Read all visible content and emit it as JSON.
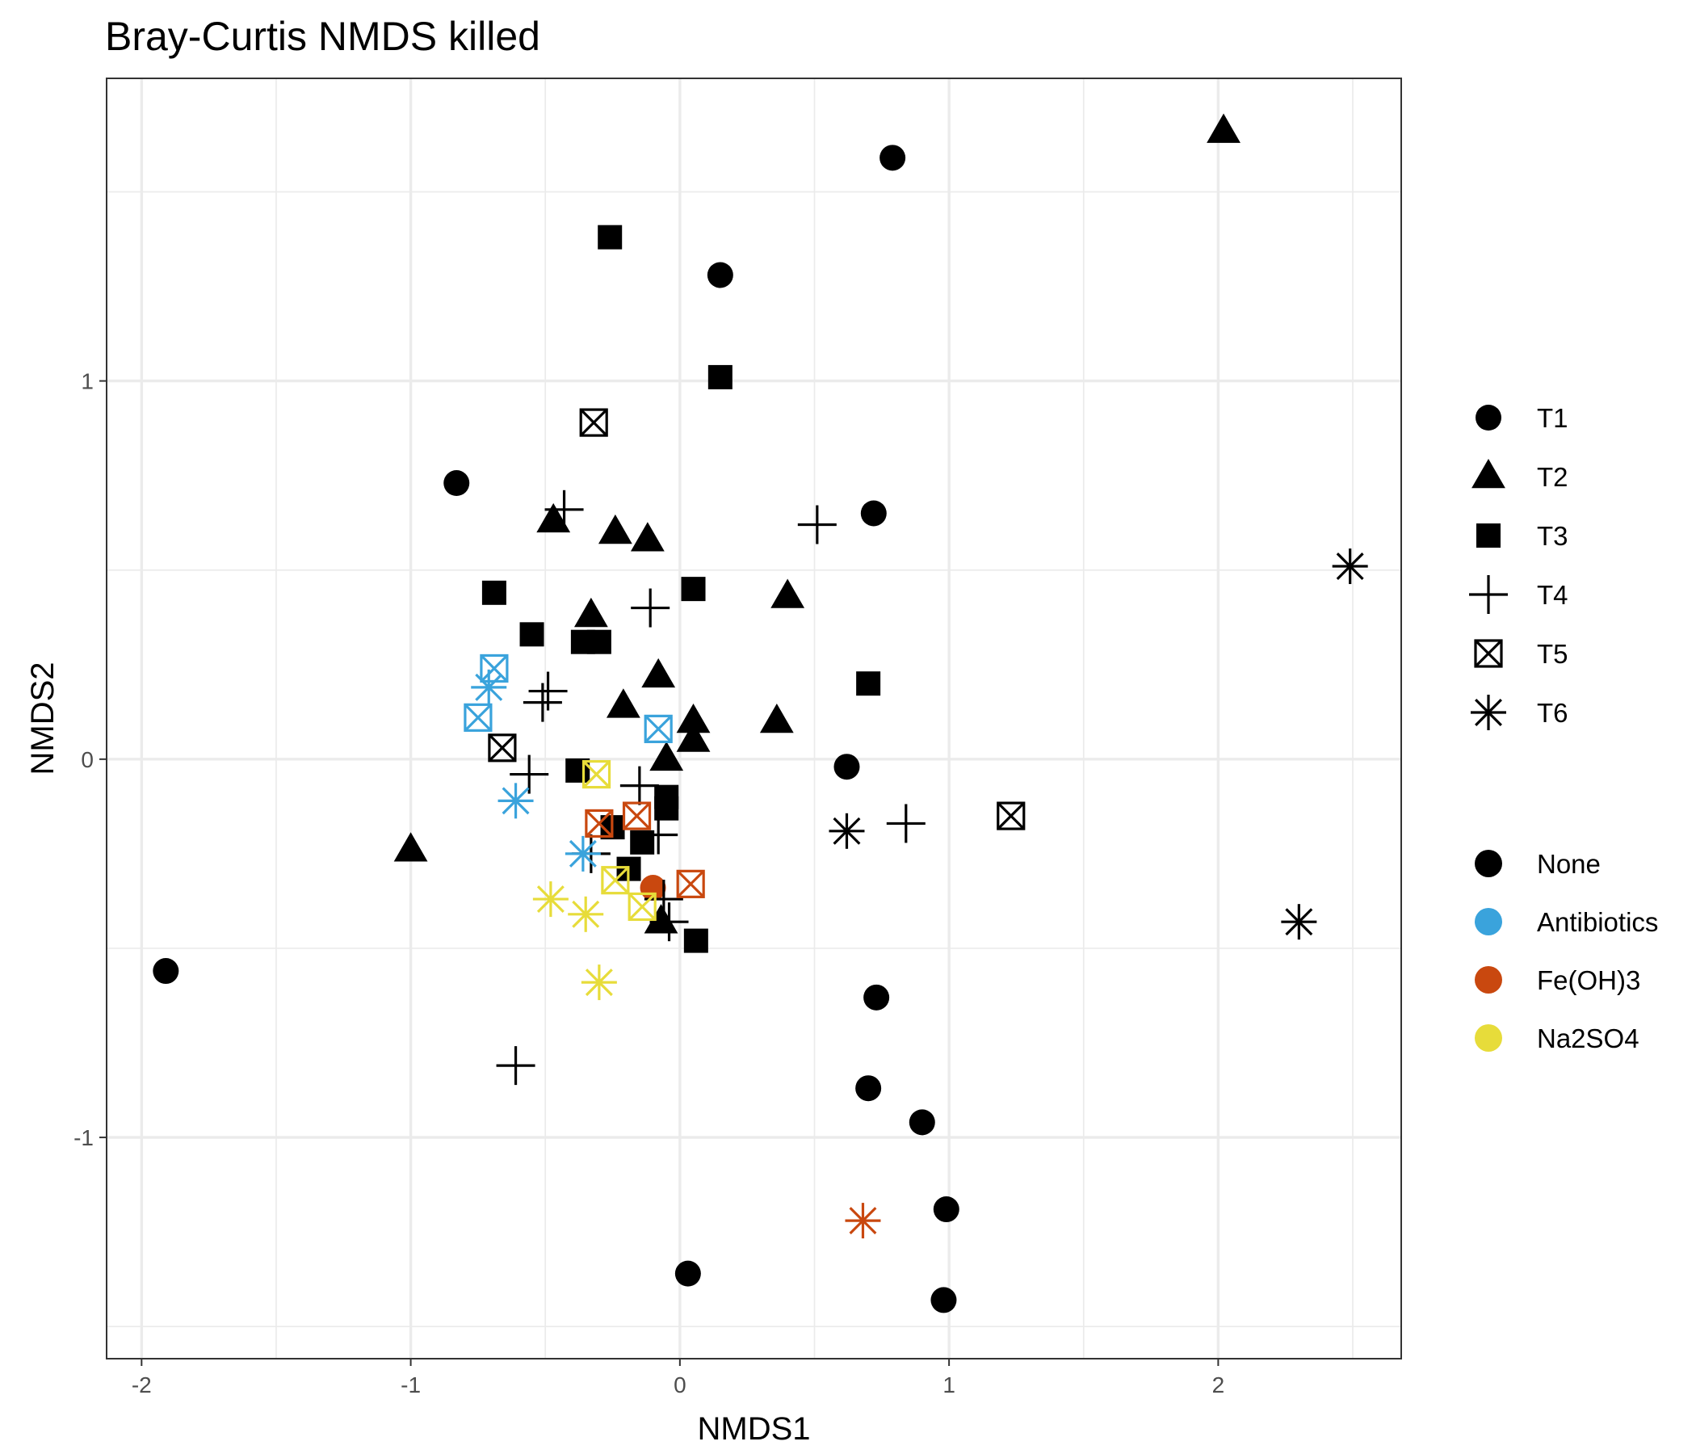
{
  "chart_data": {
    "type": "scatter",
    "title": "Bray-Curtis NMDS killed",
    "xlabel": "NMDS1",
    "ylabel": "NMDS2",
    "xlim": [
      -2.13,
      2.68
    ],
    "ylim": [
      -1.585,
      1.8
    ],
    "x_ticks": [
      -2,
      -1,
      0,
      1,
      2
    ],
    "x_tick_labels": [
      "-2",
      "-1",
      "0",
      "1",
      "2"
    ],
    "y_ticks": [
      -1,
      0,
      1
    ],
    "y_tick_labels": [
      "-1",
      "0",
      "1"
    ],
    "grid": true,
    "legend_position": "right",
    "shape_legend": [
      {
        "key": "T1",
        "label": "T1",
        "shape": "circle"
      },
      {
        "key": "T2",
        "label": "T2",
        "shape": "triangle"
      },
      {
        "key": "T3",
        "label": "T3",
        "shape": "square"
      },
      {
        "key": "T4",
        "label": "T4",
        "shape": "plus"
      },
      {
        "key": "T5",
        "label": "T5",
        "shape": "boxcross"
      },
      {
        "key": "T6",
        "label": "T6",
        "shape": "asterisk"
      }
    ],
    "color_legend": [
      {
        "key": "None",
        "label": "None",
        "color": "#000000"
      },
      {
        "key": "Antibiotics",
        "label": "Antibiotics",
        "color": "#3aa3dc"
      },
      {
        "key": "Fe(OH)3",
        "label": "Fe(OH)3",
        "color": "#c9480f"
      },
      {
        "key": "Na2SO4",
        "label": "Na2SO4",
        "color": "#e7dc3a"
      }
    ],
    "points": [
      {
        "x": 0.79,
        "y": 1.59,
        "time": "T1",
        "treatment": "None"
      },
      {
        "x": 0.15,
        "y": 1.28,
        "time": "T1",
        "treatment": "None"
      },
      {
        "x": -0.83,
        "y": 0.73,
        "time": "T1",
        "treatment": "None"
      },
      {
        "x": 0.72,
        "y": 0.65,
        "time": "T1",
        "treatment": "None"
      },
      {
        "x": 0.62,
        "y": -0.02,
        "time": "T1",
        "treatment": "None"
      },
      {
        "x": -1.91,
        "y": -0.56,
        "time": "T1",
        "treatment": "None"
      },
      {
        "x": 0.73,
        "y": -0.63,
        "time": "T1",
        "treatment": "None"
      },
      {
        "x": 0.7,
        "y": -0.87,
        "time": "T1",
        "treatment": "None"
      },
      {
        "x": 0.9,
        "y": -0.96,
        "time": "T1",
        "treatment": "None"
      },
      {
        "x": 0.99,
        "y": -1.19,
        "time": "T1",
        "treatment": "None"
      },
      {
        "x": 0.03,
        "y": -1.36,
        "time": "T1",
        "treatment": "None"
      },
      {
        "x": 0.98,
        "y": -1.43,
        "time": "T1",
        "treatment": "None"
      },
      {
        "x": -0.1,
        "y": -0.34,
        "time": "T1",
        "treatment": "Fe(OH)3"
      },
      {
        "x": 2.02,
        "y": 1.66,
        "time": "T2",
        "treatment": "None"
      },
      {
        "x": -0.47,
        "y": 0.63,
        "time": "T2",
        "treatment": "None"
      },
      {
        "x": -0.24,
        "y": 0.6,
        "time": "T2",
        "treatment": "None"
      },
      {
        "x": -0.12,
        "y": 0.58,
        "time": "T2",
        "treatment": "None"
      },
      {
        "x": 0.4,
        "y": 0.43,
        "time": "T2",
        "treatment": "None"
      },
      {
        "x": -0.33,
        "y": 0.38,
        "time": "T2",
        "treatment": "None"
      },
      {
        "x": -0.08,
        "y": 0.22,
        "time": "T2",
        "treatment": "None"
      },
      {
        "x": -0.21,
        "y": 0.14,
        "time": "T2",
        "treatment": "None"
      },
      {
        "x": 0.05,
        "y": 0.1,
        "time": "T2",
        "treatment": "None"
      },
      {
        "x": 0.36,
        "y": 0.1,
        "time": "T2",
        "treatment": "None"
      },
      {
        "x": 0.05,
        "y": 0.05,
        "time": "T2",
        "treatment": "None"
      },
      {
        "x": -0.05,
        "y": 0.0,
        "time": "T2",
        "treatment": "None"
      },
      {
        "x": -1.0,
        "y": -0.24,
        "time": "T2",
        "treatment": "None"
      },
      {
        "x": -0.07,
        "y": -0.43,
        "time": "T2",
        "treatment": "None"
      },
      {
        "x": -0.26,
        "y": 1.38,
        "time": "T3",
        "treatment": "None"
      },
      {
        "x": 0.15,
        "y": 1.01,
        "time": "T3",
        "treatment": "None"
      },
      {
        "x": -0.69,
        "y": 0.44,
        "time": "T3",
        "treatment": "None"
      },
      {
        "x": 0.05,
        "y": 0.45,
        "time": "T3",
        "treatment": "None"
      },
      {
        "x": -0.55,
        "y": 0.33,
        "time": "T3",
        "treatment": "None"
      },
      {
        "x": -0.36,
        "y": 0.31,
        "time": "T3",
        "treatment": "None"
      },
      {
        "x": -0.3,
        "y": 0.31,
        "time": "T3",
        "treatment": "None"
      },
      {
        "x": 0.7,
        "y": 0.2,
        "time": "T3",
        "treatment": "None"
      },
      {
        "x": -0.38,
        "y": -0.03,
        "time": "T3",
        "treatment": "None"
      },
      {
        "x": -0.05,
        "y": -0.1,
        "time": "T3",
        "treatment": "None"
      },
      {
        "x": -0.05,
        "y": -0.13,
        "time": "T3",
        "treatment": "None"
      },
      {
        "x": -0.25,
        "y": -0.18,
        "time": "T3",
        "treatment": "None"
      },
      {
        "x": -0.14,
        "y": -0.22,
        "time": "T3",
        "treatment": "None"
      },
      {
        "x": -0.19,
        "y": -0.29,
        "time": "T3",
        "treatment": "None"
      },
      {
        "x": 0.06,
        "y": -0.48,
        "time": "T3",
        "treatment": "None"
      },
      {
        "x": -0.43,
        "y": 0.66,
        "time": "T4",
        "treatment": "None"
      },
      {
        "x": 0.51,
        "y": 0.62,
        "time": "T4",
        "treatment": "None"
      },
      {
        "x": -0.11,
        "y": 0.4,
        "time": "T4",
        "treatment": "None"
      },
      {
        "x": -0.49,
        "y": 0.18,
        "time": "T4",
        "treatment": "None"
      },
      {
        "x": -0.51,
        "y": 0.15,
        "time": "T4",
        "treatment": "None"
      },
      {
        "x": -0.56,
        "y": -0.04,
        "time": "T4",
        "treatment": "None"
      },
      {
        "x": -0.15,
        "y": -0.07,
        "time": "T4",
        "treatment": "None"
      },
      {
        "x": 0.84,
        "y": -0.17,
        "time": "T4",
        "treatment": "None"
      },
      {
        "x": -0.08,
        "y": -0.2,
        "time": "T4",
        "treatment": "None"
      },
      {
        "x": -0.33,
        "y": -0.25,
        "time": "T4",
        "treatment": "None"
      },
      {
        "x": -0.06,
        "y": -0.37,
        "time": "T4",
        "treatment": "None"
      },
      {
        "x": -0.04,
        "y": -0.43,
        "time": "T4",
        "treatment": "None"
      },
      {
        "x": -0.61,
        "y": -0.81,
        "time": "T4",
        "treatment": "None"
      },
      {
        "x": -0.32,
        "y": 0.89,
        "time": "T5",
        "treatment": "None"
      },
      {
        "x": -0.66,
        "y": 0.03,
        "time": "T5",
        "treatment": "None"
      },
      {
        "x": 1.23,
        "y": -0.15,
        "time": "T5",
        "treatment": "None"
      },
      {
        "x": -0.69,
        "y": 0.24,
        "time": "T5",
        "treatment": "Antibiotics"
      },
      {
        "x": -0.75,
        "y": 0.11,
        "time": "T5",
        "treatment": "Antibiotics"
      },
      {
        "x": -0.08,
        "y": 0.08,
        "time": "T5",
        "treatment": "Antibiotics"
      },
      {
        "x": -0.31,
        "y": -0.04,
        "time": "T5",
        "treatment": "Na2SO4"
      },
      {
        "x": -0.3,
        "y": -0.17,
        "time": "T5",
        "treatment": "Fe(OH)3"
      },
      {
        "x": -0.16,
        "y": -0.15,
        "time": "T5",
        "treatment": "Fe(OH)3"
      },
      {
        "x": 0.04,
        "y": -0.33,
        "time": "T5",
        "treatment": "Fe(OH)3"
      },
      {
        "x": -0.24,
        "y": -0.32,
        "time": "T5",
        "treatment": "Na2SO4"
      },
      {
        "x": -0.14,
        "y": -0.39,
        "time": "T5",
        "treatment": "Na2SO4"
      },
      {
        "x": 2.49,
        "y": 0.51,
        "time": "T6",
        "treatment": "None"
      },
      {
        "x": 0.62,
        "y": -0.19,
        "time": "T6",
        "treatment": "None"
      },
      {
        "x": 2.3,
        "y": -0.43,
        "time": "T6",
        "treatment": "None"
      },
      {
        "x": -0.71,
        "y": 0.19,
        "time": "T6",
        "treatment": "Antibiotics"
      },
      {
        "x": -0.61,
        "y": -0.11,
        "time": "T6",
        "treatment": "Antibiotics"
      },
      {
        "x": -0.36,
        "y": -0.25,
        "time": "T6",
        "treatment": "Antibiotics"
      },
      {
        "x": -0.48,
        "y": -0.37,
        "time": "T6",
        "treatment": "Na2SO4"
      },
      {
        "x": -0.35,
        "y": -0.41,
        "time": "T6",
        "treatment": "Na2SO4"
      },
      {
        "x": -0.3,
        "y": -0.59,
        "time": "T6",
        "treatment": "Na2SO4"
      },
      {
        "x": 0.68,
        "y": -1.22,
        "time": "T6",
        "treatment": "Fe(OH)3"
      }
    ]
  }
}
